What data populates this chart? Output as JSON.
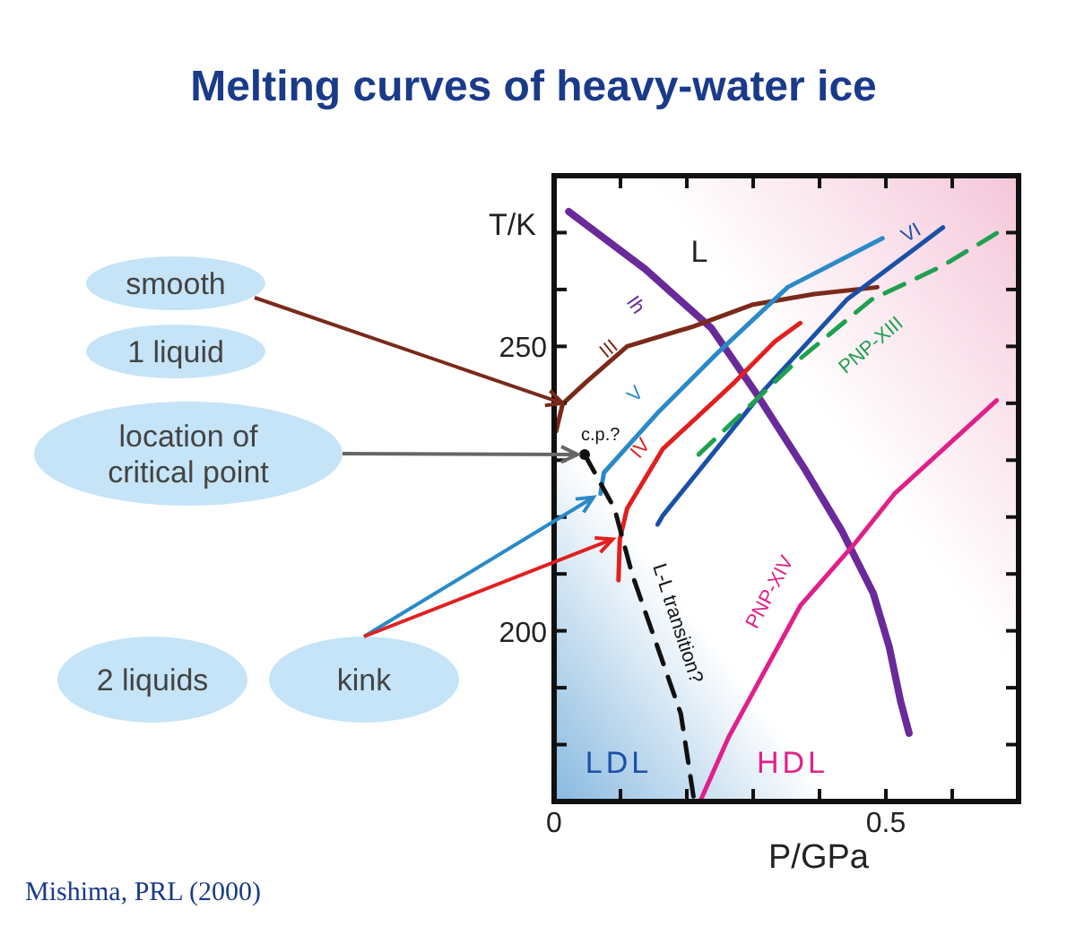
{
  "chart_data": {
    "type": "line",
    "title": "Melting curves of heavy-water ice",
    "xlabel": "P/GPa",
    "ylabel": "T/K",
    "xlim": [
      0,
      0.7
    ],
    "ylim": [
      170,
      280
    ],
    "xticks": [
      {
        "value": 0,
        "label": "0"
      },
      {
        "value": 0.1,
        "label": null
      },
      {
        "value": 0.2,
        "label": null
      },
      {
        "value": 0.3,
        "label": null
      },
      {
        "value": 0.4,
        "label": null
      },
      0.5,
      {
        "value": 0.6,
        "label": null
      },
      {
        "value": 0.7,
        "label": null
      }
    ],
    "yticks": [
      {
        "value": 170,
        "label": null
      },
      {
        "value": 180,
        "label": null
      },
      {
        "value": 190,
        "label": null
      },
      200,
      {
        "value": 210,
        "label": null
      },
      {
        "value": 220,
        "label": null
      },
      {
        "value": 230,
        "label": null
      },
      {
        "value": 240,
        "label": null
      },
      250,
      {
        "value": 260,
        "label": null
      },
      {
        "value": 270,
        "label": null
      },
      {
        "value": 280,
        "label": null
      }
    ],
    "grid": false,
    "marker": "none",
    "series": [
      {
        "name": "Ih",
        "color": "#6a2a9a",
        "x": [
          0.022,
          0.137,
          0.237,
          0.306,
          0.379,
          0.433,
          0.481,
          0.505,
          0.522,
          0.535
        ],
        "values": [
          273.7,
          263.6,
          253.2,
          241.5,
          228.2,
          217.7,
          206.6,
          197.2,
          187.7,
          182.0
        ]
      },
      {
        "name": "III",
        "color": "#7a2a1a",
        "x": [
          0.003,
          0.013,
          0.048,
          0.11,
          0.21,
          0.298,
          0.392,
          0.487
        ],
        "values": [
          235.1,
          239.9,
          243.7,
          250.0,
          253.5,
          257.3,
          259.2,
          260.4
        ]
      },
      {
        "name": "V",
        "color": "#2a8ac8",
        "x": [
          0.07,
          0.075,
          0.156,
          0.245,
          0.352,
          0.495
        ],
        "values": [
          224.1,
          227.8,
          238.3,
          248.7,
          260.4,
          269.0
        ]
      },
      {
        "name": "IV",
        "color": "#e02020",
        "x": [
          0.097,
          0.099,
          0.11,
          0.164,
          0.272,
          0.333,
          0.371
        ],
        "values": [
          208.9,
          216.1,
          221.5,
          232.0,
          243.7,
          250.9,
          254.1
        ]
      },
      {
        "name": "VI",
        "color": "#1a50a8",
        "x": [
          0.156,
          0.164,
          0.245,
          0.317,
          0.441,
          0.586
        ],
        "values": [
          218.7,
          220.3,
          232.0,
          242.4,
          258.2,
          270.9
        ]
      },
      {
        "name": "PNP-XIII",
        "color": "#20a050",
        "line_style": "dashed",
        "x": [
          0.218,
          0.36,
          0.478,
          0.586,
          0.667
        ],
        "values": [
          231.0,
          246.8,
          258.2,
          264.2,
          269.9
        ]
      },
      {
        "name": "PNP-XIV",
        "color": "#e0208a",
        "x": [
          0.22,
          0.263,
          0.371,
          0.452,
          0.513,
          0.667
        ],
        "values": [
          170.0,
          181.3,
          204.4,
          215.2,
          224.1,
          240.5
        ]
      },
      {
        "name": "L-L transition?",
        "color": "#111111",
        "line_style": "dashed",
        "x": [
          0.046,
          0.091,
          0.118,
          0.191,
          0.21
        ],
        "values": [
          231.0,
          221.5,
          209.8,
          185.4,
          170.9
        ]
      }
    ],
    "annotations": [
      "L",
      "LDL",
      "HDL",
      {
        "text": "c.p.?",
        "x": 0.046,
        "y": 231
      },
      {
        "text": "smooth",
        "x": 0.013,
        "y": 240
      },
      "1 liquid",
      "location of critical point",
      "2 liquids",
      "kink",
      "Mishima, PRL (2000)"
    ]
  }
}
